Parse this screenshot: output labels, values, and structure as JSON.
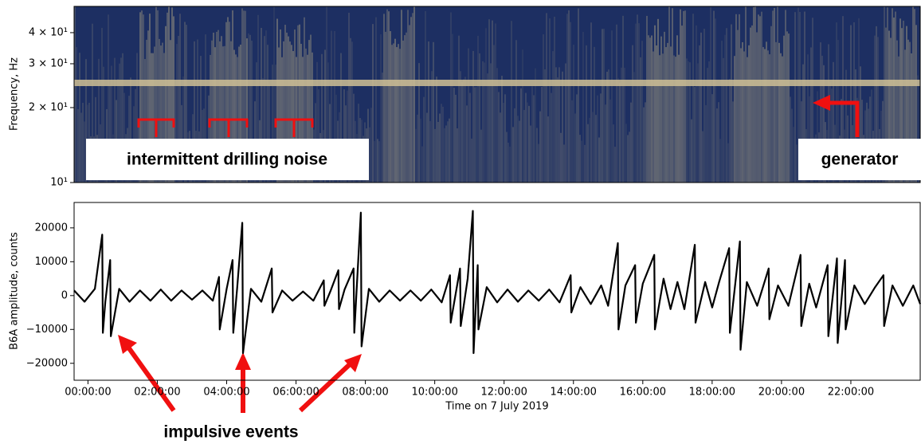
{
  "chart_data": [
    {
      "type": "spectrogram",
      "ylabel": "Frequency, Hz",
      "log_y": true,
      "ylim": [
        10,
        51
      ],
      "yticks": [
        {
          "value": 10,
          "label": "10¹"
        },
        {
          "value": 20,
          "label": "2 × 10¹"
        },
        {
          "value": 30,
          "label": "3 × 10¹"
        },
        {
          "value": 40,
          "label": "4 × 10¹"
        }
      ],
      "xlim": [
        -0.4,
        24.0
      ],
      "annotations": [
        "intermittent drilling noise",
        "generator"
      ]
    },
    {
      "type": "line",
      "ylabel": "B6A amplitude, counts",
      "xlabel": "Time on 7 July 2019",
      "xlim": [
        -0.4,
        24.0
      ],
      "ylim": [
        -25000,
        27500
      ],
      "xticks": [
        {
          "value": 0,
          "label": "00:00:00"
        },
        {
          "value": 2,
          "label": "02:00:00"
        },
        {
          "value": 4,
          "label": "04:00:00"
        },
        {
          "value": 6,
          "label": "06:00:00"
        },
        {
          "value": 8,
          "label": "08:00:00"
        },
        {
          "value": 10,
          "label": "10:00:00"
        },
        {
          "value": 12,
          "label": "12:00:00"
        },
        {
          "value": 14,
          "label": "14:00:00"
        },
        {
          "value": 16,
          "label": "16:00:00"
        },
        {
          "value": 18,
          "label": "18:00:00"
        },
        {
          "value": 20,
          "label": "20:00:00"
        },
        {
          "value": 22,
          "label": "22:00:00"
        }
      ],
      "yticks": [
        {
          "value": -20000,
          "label": "−20000"
        },
        {
          "value": -10000,
          "label": "−10000"
        },
        0,
        10000,
        20000
      ],
      "color": "#000000",
      "x": [
        -0.4,
        -0.1,
        0.2,
        0.41,
        0.43,
        0.5,
        0.64,
        0.66,
        0.9,
        1.2,
        1.5,
        1.8,
        2.1,
        2.4,
        2.7,
        3.0,
        3.3,
        3.6,
        3.78,
        3.8,
        4.0,
        4.17,
        4.19,
        4.3,
        4.45,
        4.47,
        4.7,
        5.0,
        5.3,
        5.32,
        5.6,
        5.9,
        6.2,
        6.5,
        6.8,
        6.82,
        7.0,
        7.22,
        7.24,
        7.4,
        7.66,
        7.68,
        7.87,
        7.89,
        8.1,
        8.4,
        8.7,
        9.0,
        9.3,
        9.6,
        9.9,
        10.2,
        10.44,
        10.46,
        10.73,
        10.75,
        10.95,
        11.1,
        11.12,
        11.24,
        11.26,
        11.5,
        11.8,
        12.1,
        12.4,
        12.7,
        13.0,
        13.3,
        13.6,
        13.92,
        13.94,
        14.2,
        14.5,
        14.8,
        15.0,
        15.28,
        15.3,
        15.5,
        15.78,
        15.8,
        16.0,
        16.33,
        16.35,
        16.6,
        16.8,
        17.0,
        17.2,
        17.5,
        17.52,
        17.8,
        18.0,
        18.2,
        18.49,
        18.51,
        18.8,
        18.82,
        19.0,
        19.3,
        19.63,
        19.65,
        19.9,
        20.2,
        20.55,
        20.57,
        20.8,
        21.0,
        21.33,
        21.35,
        21.6,
        21.62,
        21.83,
        21.85,
        22.1,
        22.4,
        22.7,
        22.94,
        22.96,
        23.2,
        23.5,
        23.8,
        24.0
      ],
      "values": [
        1500,
        -1800,
        2000,
        18000,
        -11000,
        -1800,
        10500,
        -12000,
        2000,
        -1800,
        1500,
        -1500,
        1800,
        -1500,
        1500,
        -1200,
        1500,
        -1500,
        5500,
        -10000,
        2000,
        10500,
        -11000,
        2000,
        21500,
        -17000,
        2000,
        -1800,
        8000,
        -5000,
        1500,
        -1500,
        1200,
        -1500,
        4500,
        -3000,
        1500,
        7500,
        -4000,
        1800,
        8000,
        -11000,
        24500,
        -15000,
        2000,
        -1800,
        1500,
        -1500,
        1500,
        -1500,
        1800,
        -2000,
        6000,
        -8000,
        8000,
        -9000,
        5000,
        25000,
        -17000,
        9000,
        -10000,
        2500,
        -2000,
        1800,
        -1800,
        1500,
        -1500,
        1800,
        -2000,
        6000,
        -5000,
        2500,
        -2500,
        3000,
        -3000,
        15500,
        -10000,
        3000,
        9000,
        -8000,
        3500,
        12000,
        -10000,
        5000,
        -4000,
        4000,
        -4000,
        15000,
        -8000,
        4000,
        -3500,
        4000,
        14000,
        -11000,
        16000,
        -16000,
        4000,
        -3000,
        8000,
        -7000,
        3000,
        -3000,
        12000,
        -9000,
        3500,
        -3500,
        9000,
        -12000,
        11000,
        -14000,
        10500,
        -10000,
        3000,
        -2500,
        2500,
        6000,
        -9000,
        3000,
        -3000,
        3000,
        -2500
      ],
      "annotations": [
        "impulsive events"
      ]
    }
  ]
}
